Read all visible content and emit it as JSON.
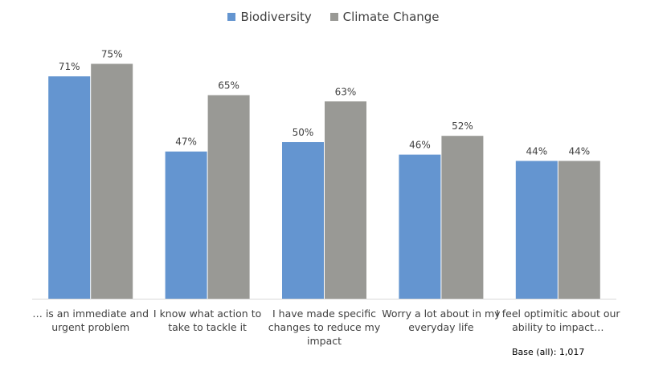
{
  "legend": {
    "items": [
      {
        "label": "Biodiversity",
        "color": "#6495d0"
      },
      {
        "label": "Climate Change",
        "color": "#999995"
      }
    ]
  },
  "footnote": "Base (all): 1,017",
  "chart_data": {
    "type": "bar",
    "title": "",
    "xlabel": "",
    "ylabel": "",
    "ylim": [
      0,
      80
    ],
    "grid": false,
    "legend_position": "top",
    "categories": [
      [
        "… is an immediate and",
        "urgent problem"
      ],
      [
        "I know what action to",
        "take to tackle it"
      ],
      [
        "I have made specific",
        "changes to reduce my",
        "impact"
      ],
      [
        "Worry a lot about in my",
        "everyday life"
      ],
      [
        "I feel optimitic about our",
        "ability to impact…"
      ]
    ],
    "series": [
      {
        "name": "Biodiversity",
        "color": "#6495d0",
        "values": [
          71,
          47,
          50,
          46,
          44
        ],
        "labels": [
          "71%",
          "47%",
          "50%",
          "46%",
          "44%"
        ]
      },
      {
        "name": "Climate Change",
        "color": "#999995",
        "values": [
          75,
          65,
          63,
          52,
          44
        ],
        "labels": [
          "75%",
          "65%",
          "63%",
          "52%",
          "44%"
        ]
      }
    ]
  }
}
